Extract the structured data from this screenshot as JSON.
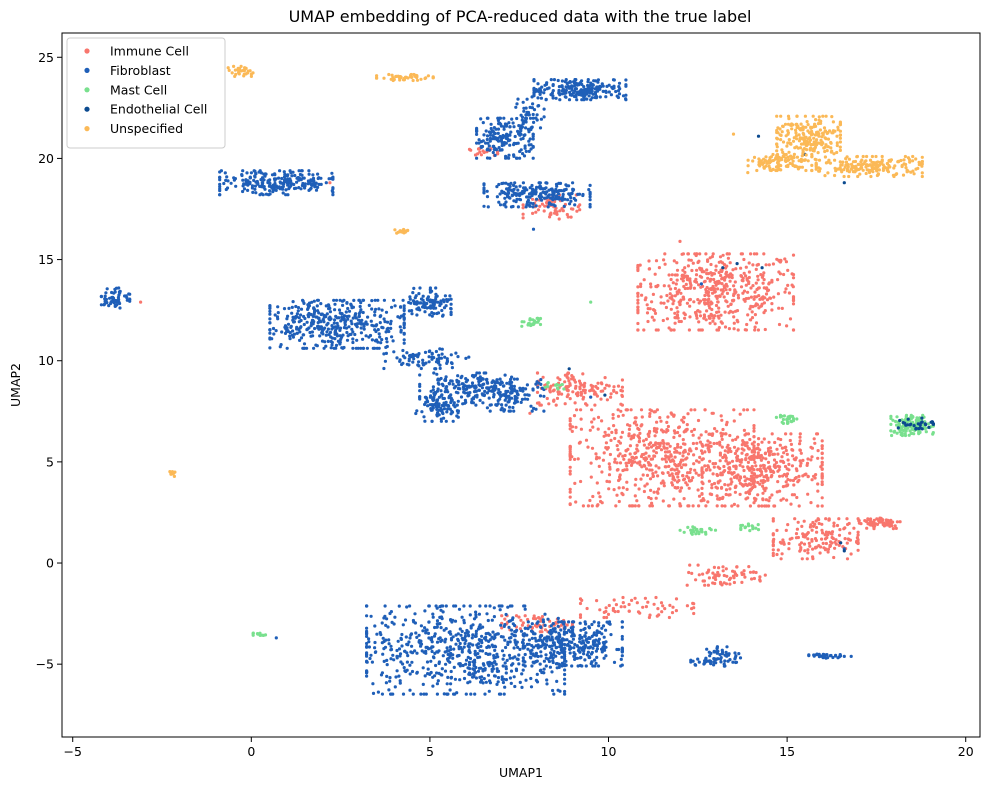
{
  "chart_data": {
    "type": "scatter",
    "title": "UMAP embedding of PCA-reduced data with the true label",
    "xlabel": "UMAP1",
    "ylabel": "UMAP2",
    "xlim": [
      -5.3,
      20.4
    ],
    "ylim": [
      -8.6,
      26.2
    ],
    "xticks": [
      -5,
      0,
      5,
      10,
      15,
      20
    ],
    "yticks": [
      -5,
      0,
      5,
      10,
      15,
      20,
      25
    ],
    "legend_position": "top-left",
    "series": [
      {
        "name": "Immune Cell",
        "color": "#f8766d",
        "clusters": [
          {
            "cx": 13.0,
            "cy": 13.4,
            "rx": 2.2,
            "ry": 1.9,
            "n": 520
          },
          {
            "cx": 11.5,
            "cy": 5.2,
            "rx": 2.6,
            "ry": 2.4,
            "n": 620
          },
          {
            "cx": 14.3,
            "cy": 4.6,
            "rx": 1.7,
            "ry": 1.8,
            "n": 380
          },
          {
            "cx": 15.8,
            "cy": 1.2,
            "rx": 1.2,
            "ry": 1.0,
            "n": 160
          },
          {
            "cx": 17.6,
            "cy": 2.0,
            "rx": 0.6,
            "ry": 0.3,
            "n": 60
          },
          {
            "cx": 9.2,
            "cy": 8.6,
            "rx": 1.2,
            "ry": 0.8,
            "n": 140
          },
          {
            "cx": 13.2,
            "cy": -0.6,
            "rx": 1.2,
            "ry": 0.5,
            "n": 70
          },
          {
            "cx": 10.8,
            "cy": -2.2,
            "rx": 1.6,
            "ry": 0.5,
            "n": 60
          },
          {
            "cx": 8.4,
            "cy": 17.6,
            "rx": 0.8,
            "ry": 0.6,
            "n": 60
          },
          {
            "cx": 6.5,
            "cy": 20.3,
            "rx": 0.4,
            "ry": 0.2,
            "n": 20
          },
          {
            "cx": 8.0,
            "cy": -3.0,
            "rx": 1.0,
            "ry": 0.4,
            "n": 60
          }
        ],
        "values": [
          [
            2.2,
            18.8
          ],
          [
            -3.1,
            12.9
          ],
          [
            7.8,
            7.4
          ],
          [
            12.0,
            15.9
          ]
        ]
      },
      {
        "name": "Fibroblast",
        "color": "#1f5fb8",
        "clusters": [
          {
            "cx": 6.0,
            "cy": -4.3,
            "rx": 2.8,
            "ry": 2.2,
            "n": 700
          },
          {
            "cx": 9.0,
            "cy": -4.0,
            "rx": 1.4,
            "ry": 1.1,
            "n": 300
          },
          {
            "cx": 0.7,
            "cy": 18.8,
            "rx": 1.6,
            "ry": 0.6,
            "n": 240
          },
          {
            "cx": 2.4,
            "cy": 11.8,
            "rx": 1.9,
            "ry": 1.2,
            "n": 420
          },
          {
            "cx": 5.0,
            "cy": 12.9,
            "rx": 0.6,
            "ry": 0.7,
            "n": 100
          },
          {
            "cx": 6.0,
            "cy": 8.6,
            "rx": 1.3,
            "ry": 0.8,
            "n": 200
          },
          {
            "cx": 5.2,
            "cy": 7.6,
            "rx": 0.6,
            "ry": 0.6,
            "n": 80
          },
          {
            "cx": 7.4,
            "cy": 8.3,
            "rx": 0.8,
            "ry": 0.8,
            "n": 100
          },
          {
            "cx": 4.9,
            "cy": 10.1,
            "rx": 1.2,
            "ry": 0.5,
            "n": 80
          },
          {
            "cx": 9.2,
            "cy": 23.4,
            "rx": 1.3,
            "ry": 0.5,
            "n": 220
          },
          {
            "cx": 7.1,
            "cy": 21.0,
            "rx": 0.8,
            "ry": 1.0,
            "n": 180
          },
          {
            "cx": 8.0,
            "cy": 18.2,
            "rx": 1.5,
            "ry": 0.6,
            "n": 230
          },
          {
            "cx": 7.8,
            "cy": 22.3,
            "rx": 0.4,
            "ry": 0.8,
            "n": 40
          },
          {
            "cx": -3.8,
            "cy": 13.1,
            "rx": 0.4,
            "ry": 0.5,
            "n": 60
          },
          {
            "cx": 13.2,
            "cy": -4.6,
            "rx": 0.5,
            "ry": 0.5,
            "n": 50
          },
          {
            "cx": 12.7,
            "cy": -4.9,
            "rx": 0.4,
            "ry": 0.15,
            "n": 20
          },
          {
            "cx": 16.2,
            "cy": -4.6,
            "rx": 0.6,
            "ry": 0.1,
            "n": 30
          }
        ],
        "values": [
          [
            0.7,
            -3.7
          ],
          [
            16.6,
            0.7
          ],
          [
            12.6,
            13.8
          ],
          [
            9.5,
            8.2
          ],
          [
            7.9,
            16.5
          ]
        ]
      },
      {
        "name": "Mast Cell",
        "color": "#79e08e",
        "clusters": [
          {
            "cx": 18.5,
            "cy": 6.8,
            "rx": 0.6,
            "ry": 0.5,
            "n": 120
          },
          {
            "cx": 7.8,
            "cy": 11.9,
            "rx": 0.3,
            "ry": 0.2,
            "n": 25
          },
          {
            "cx": 15.0,
            "cy": 7.1,
            "rx": 0.3,
            "ry": 0.2,
            "n": 25
          },
          {
            "cx": 12.5,
            "cy": 1.6,
            "rx": 0.5,
            "ry": 0.2,
            "n": 25
          },
          {
            "cx": 14.0,
            "cy": 1.8,
            "rx": 0.3,
            "ry": 0.2,
            "n": 15
          },
          {
            "cx": 0.2,
            "cy": -3.5,
            "rx": 0.2,
            "ry": 0.08,
            "n": 12
          },
          {
            "cx": 8.5,
            "cy": 8.8,
            "rx": 0.4,
            "ry": 0.2,
            "n": 12
          }
        ],
        "values": [
          [
            14.7,
            7.2
          ],
          [
            9.5,
            12.9
          ]
        ]
      },
      {
        "name": "Endothelial Cell",
        "color": "#0b4a8f",
        "clusters": [
          {
            "cx": 18.6,
            "cy": 6.9,
            "rx": 0.5,
            "ry": 0.3,
            "n": 30
          }
        ],
        "values": [
          [
            16.5,
            1.0
          ],
          [
            16.6,
            0.6
          ],
          [
            13.2,
            14.6
          ],
          [
            13.6,
            14.8
          ],
          [
            14.3,
            14.6
          ],
          [
            15.5,
            20.2
          ],
          [
            14.2,
            21.1
          ],
          [
            16.6,
            18.8
          ],
          [
            8.9,
            9.6
          ],
          [
            9.9,
            8.3
          ]
        ]
      },
      {
        "name": "Unspecified",
        "color": "#fbb957",
        "clusters": [
          {
            "cx": 15.6,
            "cy": 21.0,
            "rx": 0.9,
            "ry": 1.1,
            "n": 230
          },
          {
            "cx": 17.3,
            "cy": 19.6,
            "rx": 1.5,
            "ry": 0.5,
            "n": 190
          },
          {
            "cx": 14.8,
            "cy": 19.8,
            "rx": 0.9,
            "ry": 0.4,
            "n": 100
          },
          {
            "cx": 4.3,
            "cy": 24.0,
            "rx": 0.8,
            "ry": 0.15,
            "n": 50
          },
          {
            "cx": -0.3,
            "cy": 24.3,
            "rx": 0.35,
            "ry": 0.25,
            "n": 30
          },
          {
            "cx": 4.2,
            "cy": 16.4,
            "rx": 0.25,
            "ry": 0.12,
            "n": 18
          },
          {
            "cx": -2.2,
            "cy": 4.4,
            "rx": 0.08,
            "ry": 0.12,
            "n": 12
          }
        ],
        "values": [
          [
            13.9,
            19.3
          ],
          [
            13.5,
            21.2
          ]
        ]
      }
    ]
  }
}
